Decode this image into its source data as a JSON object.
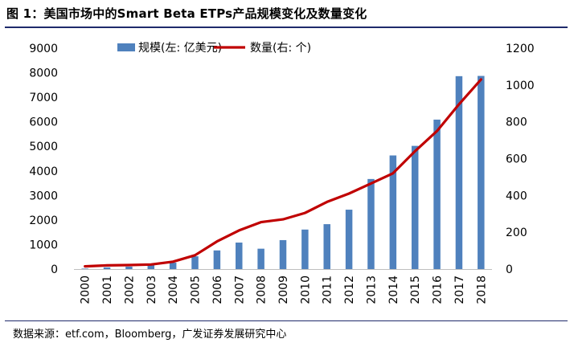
{
  "figure": {
    "title": "图 1：美国市场中的Smart Beta ETPs产品规模变化及数量变化",
    "source": "数据来源：etf.com，Bloomberg，广发证券发展研究中心"
  },
  "colors": {
    "bars": "#4f81bd",
    "line": "#c00000",
    "title_rule": "#1f2a6b"
  },
  "chart_data": {
    "type": "bar",
    "categories": [
      "2000",
      "2001",
      "2002",
      "2003",
      "2004",
      "2005",
      "2006",
      "2007",
      "2008",
      "2009",
      "2010",
      "2011",
      "2012",
      "2013",
      "2014",
      "2015",
      "2016",
      "2017",
      "2018"
    ],
    "series": [
      {
        "name": "规模(左: 亿美元)",
        "type": "bar",
        "axis": "left",
        "values": [
          20,
          70,
          100,
          190,
          260,
          520,
          760,
          1080,
          830,
          1180,
          1610,
          1830,
          2420,
          3670,
          4630,
          5020,
          6090,
          7860,
          7870
        ]
      },
      {
        "name": "数量(右: 个)",
        "type": "line",
        "axis": "right",
        "values": [
          15,
          20,
          22,
          25,
          40,
          75,
          150,
          210,
          255,
          270,
          305,
          365,
          410,
          465,
          520,
          640,
          750,
          895,
          1030
        ]
      }
    ],
    "y_left": {
      "min": 0,
      "max": 9000,
      "ticks": [
        0,
        1000,
        2000,
        3000,
        4000,
        5000,
        6000,
        7000,
        8000,
        9000
      ]
    },
    "y_right": {
      "min": 0,
      "max": 1200,
      "ticks": [
        0,
        200,
        400,
        600,
        800,
        1000,
        1200
      ]
    },
    "legend_position": "top",
    "grid": false
  }
}
